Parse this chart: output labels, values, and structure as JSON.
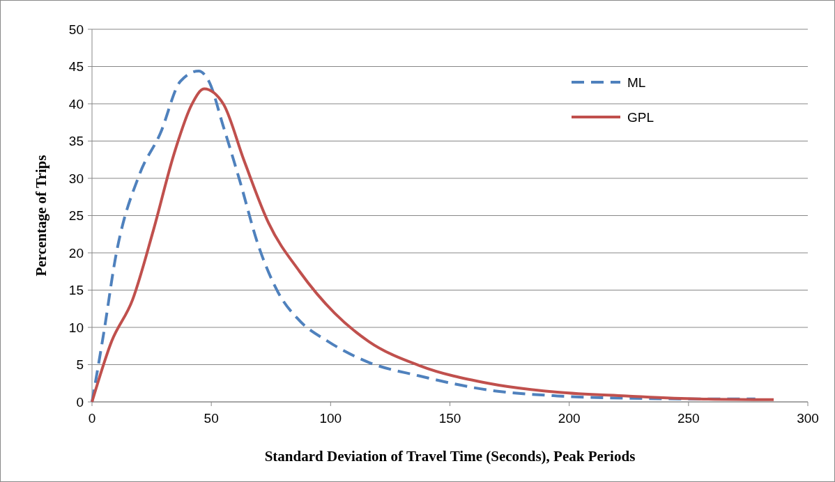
{
  "chart_data": {
    "type": "line",
    "xlabel": "Standard Deviation of Travel Time (Seconds), Peak Periods",
    "ylabel": "Percentage of Trips",
    "xlim": [
      0,
      300
    ],
    "ylim": [
      0,
      50
    ],
    "xticks": [
      0,
      50,
      100,
      150,
      200,
      250,
      300
    ],
    "yticks": [
      0,
      5,
      10,
      15,
      20,
      25,
      30,
      35,
      40,
      45,
      50
    ],
    "grid": "y",
    "legend": "top right",
    "series": [
      {
        "name": "ML",
        "color": "#4f81bd",
        "line_style": "dashed",
        "x": [
          0,
          5.3,
          9.6,
          20,
          28.6,
          37,
          44.7,
          49,
          55,
          62,
          69.5,
          78,
          87,
          99,
          116,
          137,
          166,
          195,
          224,
          254,
          278
        ],
        "values": [
          0,
          10,
          18.9,
          30.6,
          36,
          43,
          44.4,
          43,
          37,
          29.6,
          21.2,
          14.7,
          10.9,
          8.1,
          5.3,
          3.5,
          1.6,
          0.8,
          0.5,
          0.4,
          0.4
        ]
      },
      {
        "name": "GPL",
        "color": "#c0504d",
        "line_style": "solid",
        "x": [
          0,
          8.2,
          17,
          25.7,
          34.5,
          41.8,
          47,
          55,
          63.7,
          74,
          87,
          101.7,
          116,
          137,
          166,
          195,
          224,
          254,
          285.7
        ],
        "values": [
          0,
          8.1,
          13.7,
          23,
          33.4,
          39.9,
          42,
          40,
          32.4,
          24,
          17.5,
          11.9,
          8.1,
          4.9,
          2.5,
          1.3,
          0.8,
          0.4,
          0.3
        ]
      }
    ]
  }
}
